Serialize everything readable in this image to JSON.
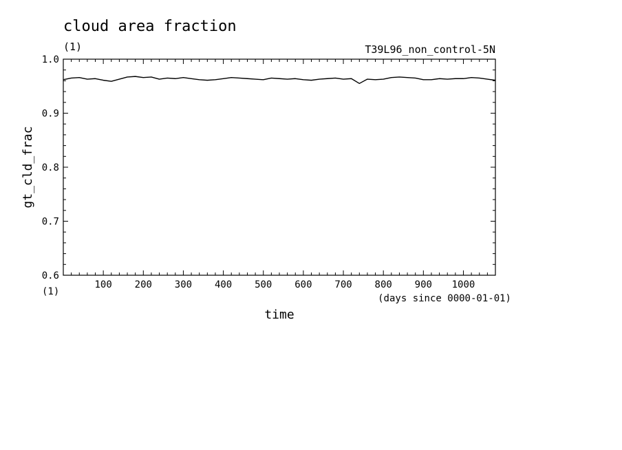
{
  "chart_data": {
    "type": "line",
    "title": "cloud area fraction",
    "units_label": "(1)",
    "experiment": "T39L96_non_control-5N",
    "xlabel": "time",
    "x_units": "(days since 0000-01-01)",
    "ylabel": "gt_cld_frac",
    "y_units": "(1)",
    "xlim": [
      0,
      1080
    ],
    "ylim": [
      0.6,
      1.0
    ],
    "x_ticks": [
      100,
      200,
      300,
      400,
      500,
      600,
      700,
      800,
      900,
      1000
    ],
    "x_tick_labels": [
      "100",
      "200",
      "300",
      "400",
      "500",
      "600",
      "700",
      "800",
      "900",
      "1000"
    ],
    "y_ticks": [
      0.6,
      0.7,
      0.8,
      0.9,
      1.0
    ],
    "y_tick_labels": [
      "0.6",
      "0.7",
      "0.8",
      "0.9",
      "1.0"
    ],
    "grid": false,
    "series": [
      {
        "color": "#000000",
        "x": [
          0,
          20,
          40,
          60,
          80,
          100,
          120,
          140,
          160,
          180,
          200,
          220,
          240,
          260,
          280,
          300,
          320,
          340,
          360,
          380,
          400,
          420,
          440,
          460,
          480,
          500,
          520,
          540,
          560,
          580,
          600,
          620,
          640,
          660,
          680,
          700,
          720,
          740,
          760,
          780,
          800,
          820,
          840,
          860,
          880,
          900,
          920,
          940,
          960,
          980,
          1000,
          1020,
          1040,
          1060,
          1080
        ],
        "values": [
          0.962,
          0.965,
          0.966,
          0.963,
          0.964,
          0.961,
          0.959,
          0.963,
          0.967,
          0.968,
          0.966,
          0.967,
          0.963,
          0.965,
          0.964,
          0.966,
          0.964,
          0.962,
          0.961,
          0.962,
          0.964,
          0.966,
          0.965,
          0.964,
          0.963,
          0.962,
          0.965,
          0.964,
          0.963,
          0.964,
          0.962,
          0.961,
          0.963,
          0.964,
          0.965,
          0.963,
          0.964,
          0.955,
          0.963,
          0.962,
          0.963,
          0.966,
          0.967,
          0.966,
          0.965,
          0.962,
          0.962,
          0.964,
          0.963,
          0.964,
          0.964,
          0.966,
          0.965,
          0.963,
          0.961
        ]
      }
    ]
  }
}
